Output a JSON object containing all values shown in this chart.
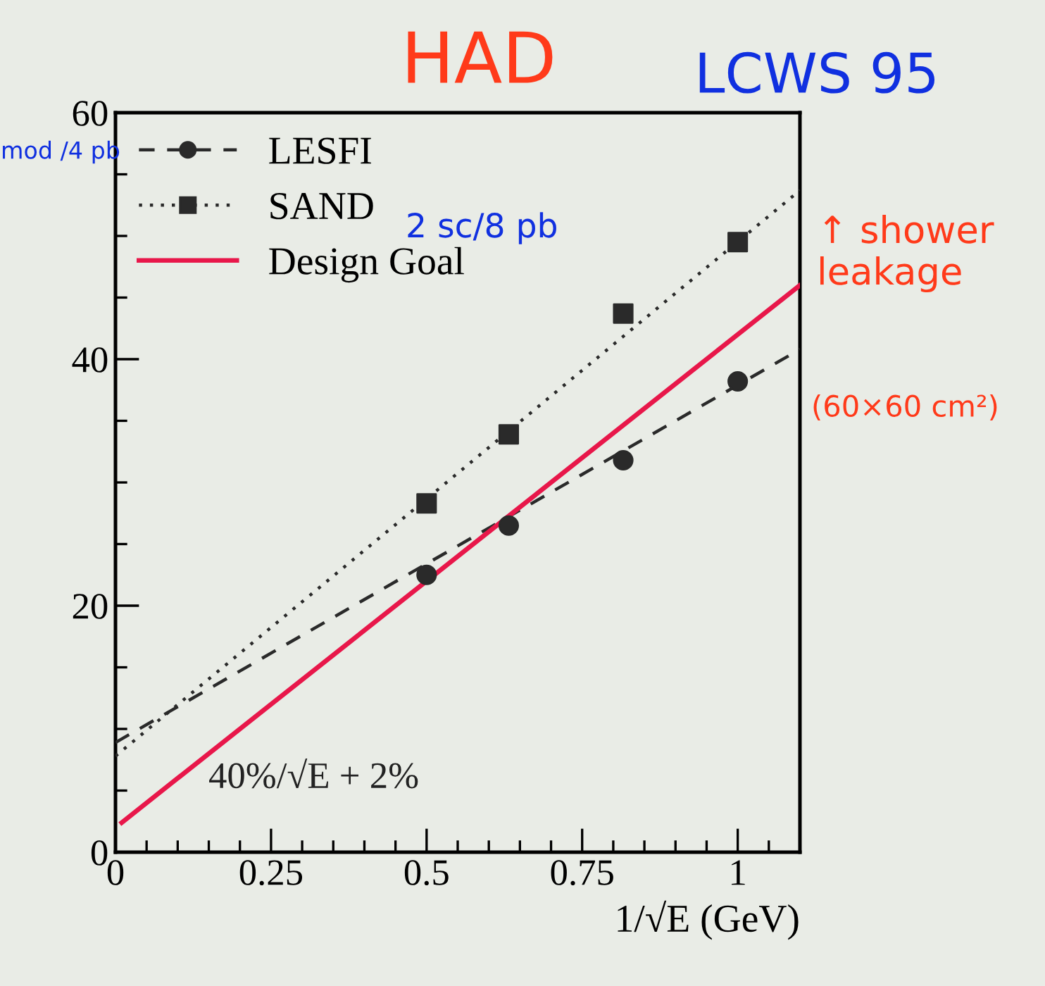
{
  "chart_data": {
    "type": "scatter",
    "title": "HAD",
    "xlabel": "1/√E (GeV)",
    "xlim": [
      0,
      1.1
    ],
    "ylim": [
      0,
      60
    ],
    "xticks": [
      0,
      {
        "value": 0.05,
        "label": null
      },
      {
        "value": 0.1,
        "label": null
      },
      {
        "value": 0.15,
        "label": null
      },
      {
        "value": 0.2,
        "label": null
      },
      0.25,
      {
        "value": 0.3,
        "label": null
      },
      {
        "value": 0.35,
        "label": null
      },
      {
        "value": 0.4,
        "label": null
      },
      {
        "value": 0.45,
        "label": null
      },
      0.5,
      {
        "value": 0.55,
        "label": null
      },
      {
        "value": 0.6,
        "label": null
      },
      {
        "value": 0.65,
        "label": null
      },
      {
        "value": 0.7,
        "label": null
      },
      0.75,
      {
        "value": 0.8,
        "label": null
      },
      {
        "value": 0.85,
        "label": null
      },
      {
        "value": 0.9,
        "label": null
      },
      {
        "value": 0.95,
        "label": null
      },
      1,
      {
        "value": 1.05,
        "label": null
      }
    ],
    "yticks": [
      0,
      {
        "value": 5,
        "label": null
      },
      {
        "value": 10,
        "label": null
      },
      {
        "value": 15,
        "label": null
      },
      20,
      {
        "value": 25,
        "label": null
      },
      {
        "value": 30,
        "label": null
      },
      {
        "value": 35,
        "label": null
      },
      40,
      {
        "value": 45,
        "label": null
      },
      {
        "value": 50,
        "label": null
      },
      {
        "value": 55,
        "label": null
      },
      60
    ],
    "legend": "top left",
    "grid": false,
    "series": [
      {
        "name": "LESFI",
        "marker": "circle",
        "color": "#2a2a2a",
        "x": [
          0.5,
          0.632,
          0.816,
          1.0
        ],
        "values": [
          22.5,
          26.5,
          31.8,
          38.2
        ]
      },
      {
        "type": "line",
        "line_style": "dashed",
        "color": "#2a2a2a",
        "x": [
          0,
          1.1
        ],
        "values": [
          8.9,
          40.8
        ]
      },
      {
        "name": "SAND",
        "marker": "square",
        "color": "#2a2a2a",
        "x": [
          0.5,
          0.632,
          0.816,
          1.0
        ],
        "values": [
          28.3,
          33.9,
          43.7,
          49.5
        ]
      },
      {
        "type": "line",
        "line_style": "dotted",
        "color": "#2a2a2a",
        "x": [
          0,
          1.1
        ],
        "values": [
          7.8,
          53.7
        ]
      },
      {
        "name": "Design Goal",
        "type": "line",
        "line_style": "solid",
        "color": "#e8174a",
        "x": [
          0.01,
          1.1
        ],
        "values": [
          2.4,
          46
        ]
      }
    ],
    "annotations": [
      "LCWS 95",
      "mod /4 pb",
      "2 sc/8 pb",
      "↑ shower leakage",
      "(60×60 cm²)",
      "40%/√E + 2%"
    ]
  }
}
